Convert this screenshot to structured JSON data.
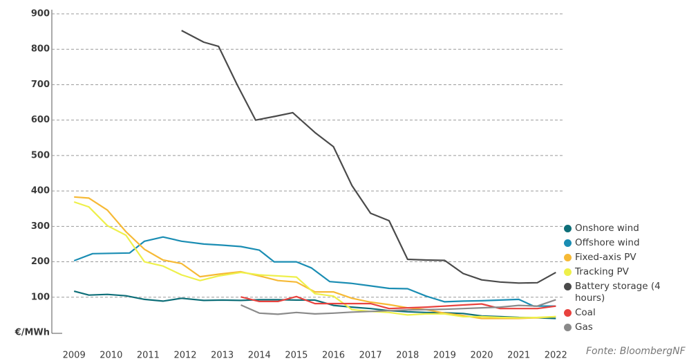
{
  "chart_data": {
    "type": "line",
    "y_label": "€/MWh",
    "source": "Fonte: BloombergNF",
    "xlim": [
      2008.4,
      2022.2
    ],
    "xticks": [
      2009,
      2010,
      2011,
      2012,
      2013,
      2014,
      2015,
      2016,
      2017,
      2018,
      2019,
      2020,
      2021,
      2022
    ],
    "ylim": [
      0,
      900
    ],
    "yticks": [
      100,
      200,
      300,
      400,
      500,
      600,
      700,
      800,
      900
    ],
    "grid": true,
    "legend": "right",
    "series": [
      {
        "name": "Onshore wind",
        "color": "#0d6e78",
        "x": [
          2009,
          2009.4,
          2009.9,
          2010.4,
          2010.9,
          2011.4,
          2011.9,
          2012.5,
          2013,
          2013.5,
          2014,
          2014.5,
          2015,
          2015.5,
          2016,
          2016.5,
          2017,
          2017.5,
          2018,
          2018.5,
          2019,
          2019.5,
          2020,
          2020.5,
          2021,
          2021.5,
          2022
        ],
        "values": [
          117,
          106,
          108,
          104,
          94,
          89,
          97,
          91,
          92,
          91,
          93,
          93,
          92,
          92,
          77,
          72,
          68,
          62,
          59,
          57,
          56,
          54,
          47,
          45,
          43,
          42,
          40
        ]
      },
      {
        "name": "Offshore wind",
        "color": "#1a8db3",
        "x": [
          2009,
          2009.5,
          2010,
          2010.5,
          2010.9,
          2011.4,
          2011.9,
          2012.5,
          2013,
          2013.5,
          2014,
          2014.4,
          2015,
          2015.4,
          2015.9,
          2016.5,
          2017,
          2017.5,
          2018,
          2018.5,
          2019,
          2019.5,
          2020,
          2020.5,
          2021,
          2021.4,
          2022
        ],
        "values": [
          203,
          223,
          224,
          225,
          258,
          270,
          258,
          250,
          247,
          243,
          233,
          200,
          200,
          183,
          144,
          139,
          132,
          125,
          124,
          103,
          87,
          89,
          90,
          92,
          94,
          75,
          75
        ]
      },
      {
        "name": "Fixed-axis PV",
        "color": "#f6b935",
        "x": [
          2009,
          2009.4,
          2009.9,
          2010.4,
          2010.9,
          2011.4,
          2011.9,
          2012.4,
          2012.9,
          2013.5,
          2014,
          2014.5,
          2015,
          2015.5,
          2016,
          2016.5,
          2017,
          2017.5,
          2018,
          2018.5,
          2019,
          2019.5,
          2020,
          2020.5,
          2021,
          2021.5,
          2022
        ],
        "values": [
          383,
          380,
          346,
          285,
          235,
          205,
          195,
          158,
          165,
          172,
          160,
          147,
          143,
          115,
          115,
          97,
          86,
          79,
          70,
          65,
          55,
          48,
          40,
          40,
          40,
          42,
          45
        ]
      },
      {
        "name": "Tracking PV",
        "color": "#eef04a",
        "x": [
          2009,
          2009.4,
          2009.9,
          2010.4,
          2010.9,
          2011.4,
          2011.9,
          2012.4,
          2012.9,
          2013.5,
          2014,
          2014.5,
          2015,
          2015.5,
          2016,
          2016.5,
          2017,
          2017.5,
          2018,
          2018.5,
          2019,
          2019.5,
          2020,
          2020.5,
          2021,
          2021.5,
          2022
        ],
        "values": [
          369,
          355,
          302,
          275,
          200,
          188,
          163,
          147,
          160,
          170,
          163,
          160,
          157,
          110,
          103,
          65,
          60,
          57,
          50,
          53,
          53,
          45,
          45,
          43,
          42,
          43,
          45
        ]
      },
      {
        "name": "Battery storage (4 hours)",
        "color": "#4a4a4a",
        "x": [
          2011.9,
          2012.5,
          2012.9,
          2013.4,
          2013.9,
          2014.4,
          2014.9,
          2015.5,
          2016,
          2016.5,
          2017,
          2017.5,
          2018,
          2018.5,
          2019,
          2019.5,
          2020,
          2020.5,
          2021,
          2021.5,
          2022
        ],
        "values": [
          853,
          820,
          808,
          700,
          600,
          610,
          621,
          565,
          525,
          415,
          337,
          316,
          207,
          205,
          204,
          167,
          149,
          143,
          140,
          141,
          170
        ]
      },
      {
        "name": "Coal",
        "color": "#e8423e",
        "x": [
          2013.5,
          2014,
          2014.5,
          2015,
          2015.5,
          2016,
          2016.5,
          2017,
          2017.5,
          2018,
          2018.5,
          2019,
          2019.5,
          2020,
          2020.5,
          2021,
          2021.5,
          2022
        ],
        "values": [
          101,
          88,
          88,
          102,
          82,
          82,
          82,
          82,
          68,
          70,
          72,
          75,
          78,
          81,
          68,
          68,
          68,
          75
        ]
      },
      {
        "name": "Gas",
        "color": "#8a8a8a",
        "x": [
          2013.5,
          2014,
          2014.5,
          2015,
          2015.5,
          2016,
          2016.5,
          2017,
          2017.5,
          2018,
          2018.5,
          2019,
          2019.5,
          2020,
          2020.5,
          2021,
          2021.5,
          2022
        ],
        "values": [
          78,
          55,
          52,
          57,
          53,
          55,
          58,
          60,
          62,
          64,
          65,
          66,
          68,
          70,
          72,
          77,
          75,
          93
        ]
      }
    ]
  }
}
